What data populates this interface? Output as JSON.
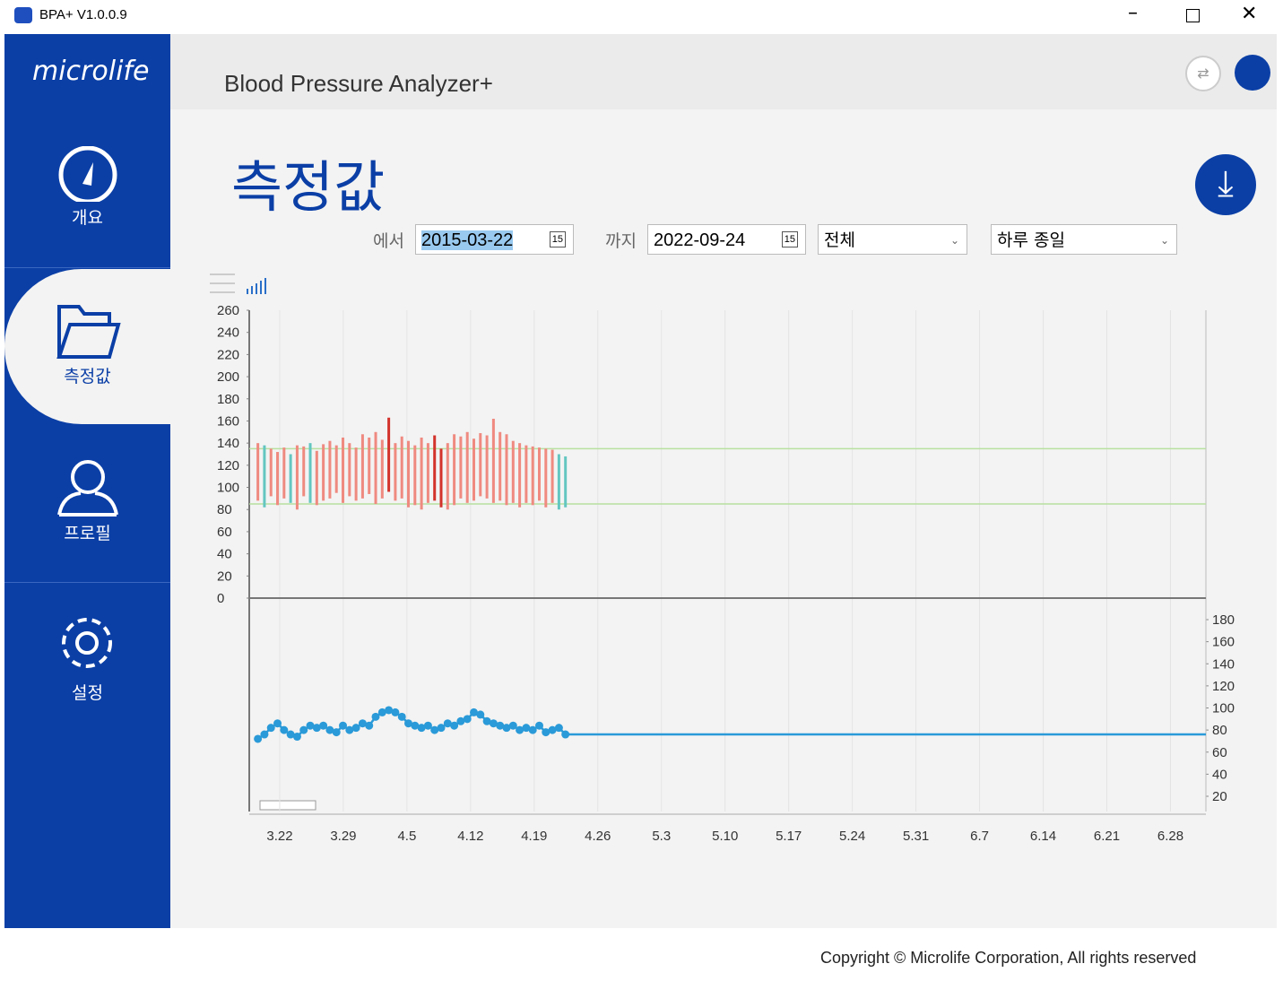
{
  "window": {
    "title": "BPA+ V1.0.0.9"
  },
  "brand": "microlife",
  "header": {
    "title": "Blood Pressure Analyzer+"
  },
  "page_title": "측정값",
  "nav": [
    "개요",
    "측정값",
    "프로필",
    "설정"
  ],
  "filters": {
    "from_label": "에서",
    "from_date": "2015-03-22",
    "to_label": "까지",
    "to_date": "2022-09-24",
    "calendar_day": "15",
    "period": "전체",
    "time": "하루 종일"
  },
  "footer": "Copyright © Microlife Corporation, All rights reserved",
  "chart_data": {
    "type": "combo",
    "xlim": [
      -3.35,
      101.9
    ],
    "xticks": [
      {
        "value": 0,
        "label": "3.22"
      },
      {
        "value": 7,
        "label": "3.29"
      },
      {
        "value": 14,
        "label": "4.5"
      },
      {
        "value": 21,
        "label": "4.12"
      },
      {
        "value": 28,
        "label": "4.19"
      },
      {
        "value": 35,
        "label": "4.26"
      },
      {
        "value": 42,
        "label": "5.3"
      },
      {
        "value": 49,
        "label": "5.10"
      },
      {
        "value": 56,
        "label": "5.17"
      },
      {
        "value": 63,
        "label": "5.24"
      },
      {
        "value": 70,
        "label": "5.31"
      },
      {
        "value": 77,
        "label": "6.7"
      },
      {
        "value": 84,
        "label": "6.14"
      },
      {
        "value": 91,
        "label": "6.21"
      },
      {
        "value": 98,
        "label": "6.28"
      }
    ],
    "ylim": [
      0,
      260
    ],
    "yticks": [
      0,
      20,
      40,
      60,
      80,
      100,
      120,
      140,
      160,
      180,
      200,
      220,
      240,
      260
    ],
    "y2lim": [
      20,
      180
    ],
    "y2ticks": [
      20,
      40,
      60,
      80,
      100,
      120,
      140,
      160,
      180
    ],
    "reference_lines": [
      135,
      85
    ],
    "reference_color": "#b8e0a0",
    "x": [
      -2.4,
      -1.68,
      -0.96,
      -0.24,
      0.48,
      1.2,
      1.92,
      2.64,
      3.36,
      4.08,
      4.8,
      5.52,
      6.24,
      6.96,
      7.68,
      8.4,
      9.12,
      9.84,
      10.56,
      11.28,
      12,
      12.72,
      13.44,
      14.16,
      14.88,
      15.6,
      16.32,
      17.04,
      17.76,
      18.48,
      19.2,
      19.92,
      20.64,
      21.36,
      22.08,
      22.8,
      23.52,
      24.24,
      24.96,
      25.68,
      26.4,
      27.12,
      27.84,
      28.56,
      29.28,
      30,
      30.72,
      31.44
    ],
    "systolic": [
      140,
      138,
      135,
      132,
      136,
      130,
      138,
      137,
      140,
      133,
      139,
      142,
      138,
      145,
      140,
      136,
      148,
      145,
      150,
      143,
      163,
      140,
      146,
      142,
      138,
      145,
      140,
      147,
      135,
      140,
      148,
      146,
      150,
      144,
      149,
      147,
      162,
      150,
      148,
      142,
      140,
      138,
      137,
      136,
      135,
      134,
      130,
      128
    ],
    "diastolic": [
      88,
      82,
      92,
      84,
      90,
      86,
      80,
      92,
      86,
      84,
      88,
      90,
      95,
      86,
      92,
      88,
      90,
      94,
      85,
      90,
      96,
      88,
      90,
      82,
      84,
      80,
      86,
      88,
      82,
      80,
      84,
      90,
      86,
      88,
      92,
      90,
      86,
      88,
      84,
      86,
      82,
      86,
      84,
      88,
      82,
      86,
      80,
      82
    ],
    "bar_colors": [
      "#ef8a80",
      "#63c6c0",
      "#ef8a80",
      "#ef8a80",
      "#ef8a80",
      "#63c6c0",
      "#ef8a80",
      "#ef8a80",
      "#63c6c0",
      "#ef8a80",
      "#ef8a80",
      "#ef8a80",
      "#ef8a80",
      "#ef8a80",
      "#ef8a80",
      "#ef8a80",
      "#ef8a80",
      "#ef8a80",
      "#ef8a80",
      "#ef8a80",
      "#d2332b",
      "#ef8a80",
      "#ef8a80",
      "#ef8a80",
      "#ef8a80",
      "#ef8a80",
      "#ef8a80",
      "#d2332b",
      "#d2332b",
      "#ef8a80",
      "#ef8a80",
      "#ef8a80",
      "#ef8a80",
      "#ef8a80",
      "#ef8a80",
      "#ef8a80",
      "#ef8a80",
      "#ef8a80",
      "#ef8a80",
      "#ef8a80",
      "#ef8a80",
      "#ef8a80",
      "#ef8a80",
      "#ef8a80",
      "#ef8a80",
      "#ef8a80",
      "#63c6c0",
      "#63c6c0"
    ],
    "pulse": [
      72,
      76,
      82,
      86,
      80,
      76,
      74,
      80,
      84,
      82,
      84,
      80,
      78,
      84,
      80,
      82,
      86,
      84,
      92,
      96,
      98,
      96,
      92,
      86,
      84,
      82,
      84,
      80,
      82,
      86,
      84,
      88,
      90,
      96,
      94,
      88,
      86,
      84,
      82,
      84,
      80,
      82,
      80,
      84,
      78,
      80,
      82,
      76
    ],
    "pulse_color": "#2a9ad8"
  }
}
